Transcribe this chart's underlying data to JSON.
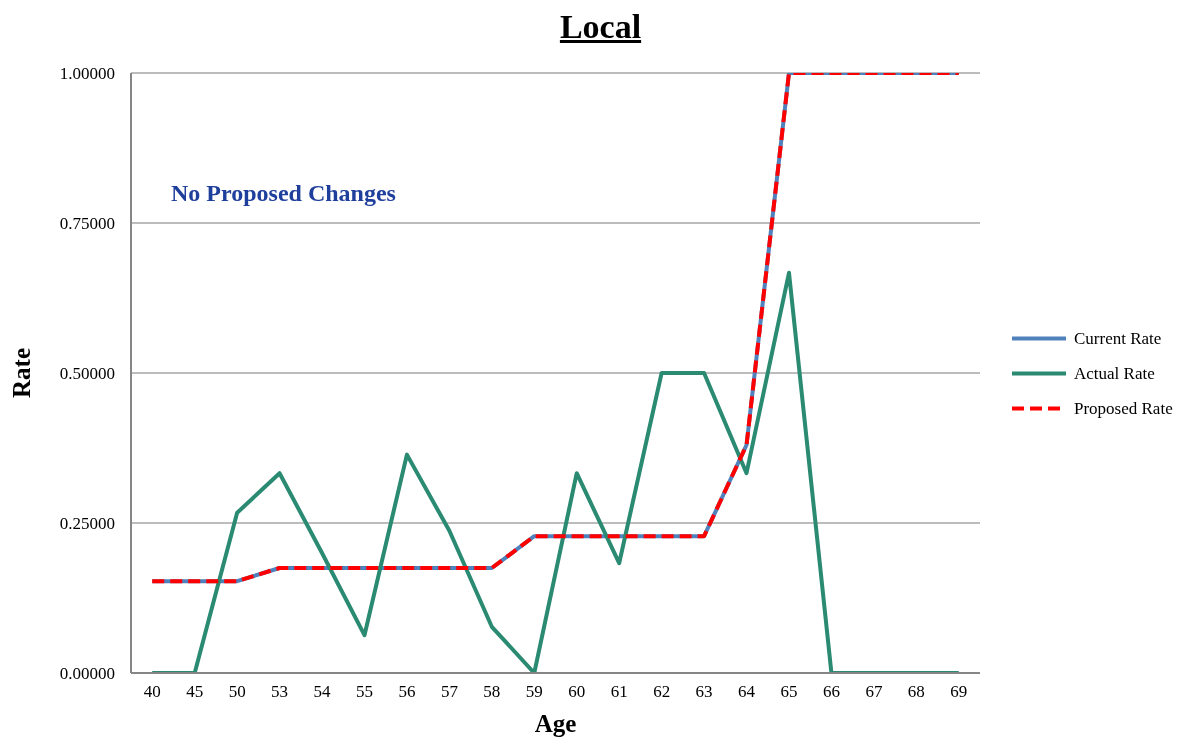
{
  "chart_data": {
    "type": "line",
    "title": "Local",
    "xlabel": "Age",
    "ylabel": "Rate",
    "categories": [
      "40",
      "45",
      "50",
      "53",
      "54",
      "55",
      "56",
      "57",
      "58",
      "59",
      "60",
      "61",
      "62",
      "63",
      "64",
      "65",
      "66",
      "67",
      "68",
      "69"
    ],
    "series": [
      {
        "name": "Current Rate",
        "color": "#4f81bd",
        "line_style": "solid",
        "values": [
          0.153,
          0.153,
          0.153,
          0.175,
          0.175,
          0.175,
          0.175,
          0.175,
          0.175,
          0.228,
          0.228,
          0.228,
          0.228,
          0.228,
          0.38,
          1,
          1,
          1,
          1,
          1
        ]
      },
      {
        "name": "Actual Rate",
        "color": "#2a8a72",
        "line_style": "solid",
        "values": [
          0,
          0,
          0.267,
          0.333,
          0.2,
          0.063,
          0.364,
          0.237,
          0.077,
          0,
          0.333,
          0.183,
          0.5,
          0.5,
          0.333,
          0.667,
          0,
          0,
          0,
          0
        ]
      },
      {
        "name": "Proposed Rate",
        "color": "#ff0000",
        "line_style": "dashed",
        "values": [
          0.153,
          0.153,
          0.153,
          0.175,
          0.175,
          0.175,
          0.175,
          0.175,
          0.175,
          0.228,
          0.228,
          0.228,
          0.228,
          0.228,
          0.38,
          1,
          1,
          1,
          1,
          1
        ]
      }
    ],
    "ylim": [
      0,
      1
    ],
    "yticks": [
      {
        "value": 0,
        "label": "0.00000"
      },
      {
        "value": 0.25,
        "label": "0.25000"
      },
      {
        "value": 0.5,
        "label": "0.50000"
      },
      {
        "value": 0.75,
        "label": "0.75000"
      },
      {
        "value": 1,
        "label": "1.00000"
      }
    ],
    "grid": "y",
    "legend": "right",
    "marker": "none",
    "annotations": [
      "No Proposed Changes"
    ]
  }
}
